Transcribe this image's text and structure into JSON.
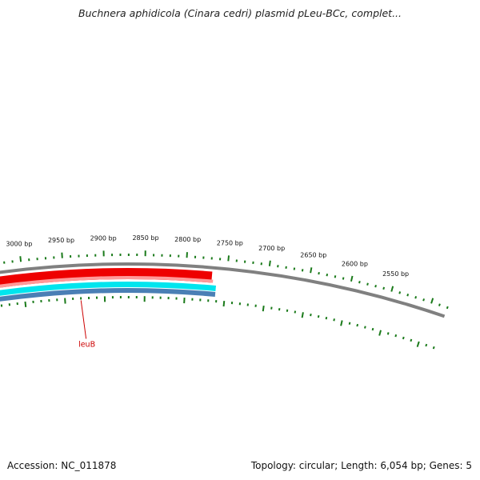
{
  "title": "Buchnera aphidicola (Cinara cedri) plasmid pLeu-BCc, complet...",
  "footer": {
    "accession": "Accession: NC_011878",
    "summary": "Topology: circular; Length: 6,054 bp; Genes: 5"
  },
  "colors": {
    "backbone": "#808080",
    "tick": "#1a7a1a",
    "gene_forward": "#ee0000",
    "gene_forward_light": "#ff9999",
    "gene_cds": "#00e5ee",
    "gene_rna": "#4a7fb5",
    "label": "#cc0000"
  },
  "scale_labels": [
    "3000 bp",
    "2950 bp",
    "2900 bp",
    "2850 bp",
    "2800 bp",
    "2750 bp",
    "2700 bp",
    "2650 bp",
    "2600 bp",
    "2550 bp"
  ],
  "scale_positions_bp": [
    3000,
    2950,
    2900,
    2850,
    2800,
    2750,
    2700,
    2650,
    2600,
    2550
  ],
  "genes": [
    {
      "name": "leuB",
      "label_position_bp": 2950
    }
  ]
}
